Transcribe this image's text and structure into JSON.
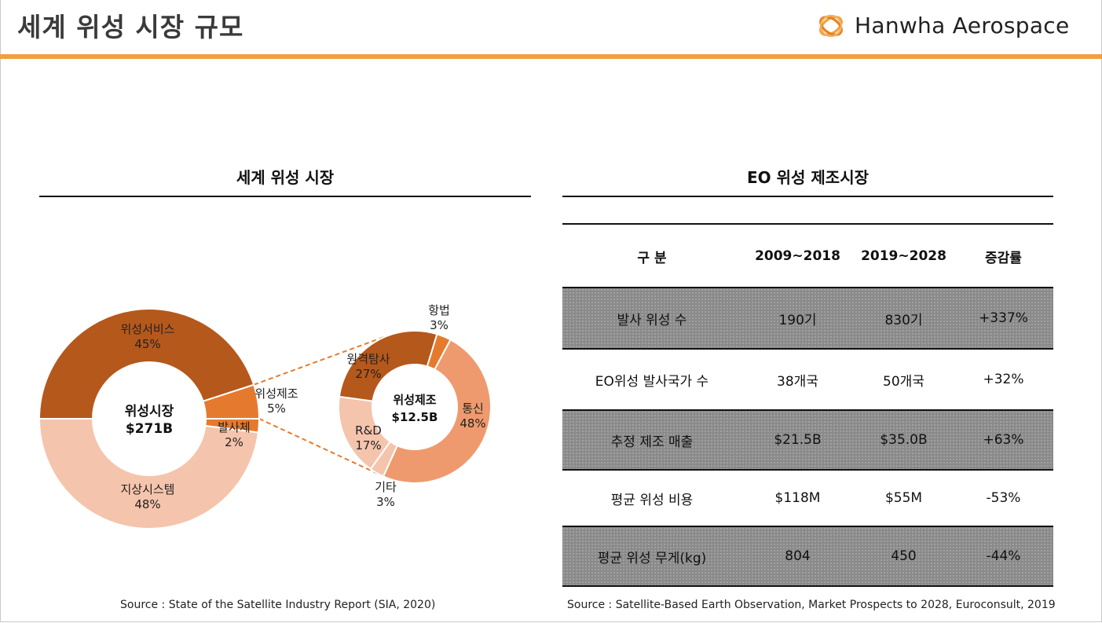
{
  "header": {
    "title": "세계 위성 시장 규모",
    "logo_text": "Hanwha Aerospace"
  },
  "colors": {
    "accent": "#f0a040",
    "dark_brown": "#b5581c",
    "orange": "#e57a2e",
    "salmon": "#ef9a6e",
    "light_pink": "#f5c4ac",
    "table_shade": "#8a8a8a"
  },
  "left_section": {
    "title": "세계 위성 시장",
    "source": "Source : State of the Satellite Industry Report (SIA, 2020)"
  },
  "right_section": {
    "title": "EO 위성 제조시장",
    "source": "Source : Satellite-Based Earth Observation, Market Prospects to 2028, Euroconsult, 2019"
  },
  "chart_data": [
    {
      "type": "pie",
      "center_label": [
        "위성시장",
        "$271B"
      ],
      "labels": [
        "위성서비스",
        "위성제조",
        "발사체",
        "지상시스템"
      ],
      "values": [
        45,
        5,
        2,
        48
      ],
      "value_labels": [
        "45%",
        "5%",
        "2%",
        "48%"
      ],
      "colors": [
        "#b5581c",
        "#e57a2e",
        "#e57a2e",
        "#f5c4ac"
      ]
    },
    {
      "type": "pie",
      "center_label": [
        "위성제조",
        "$12.5B"
      ],
      "labels": [
        "항법",
        "통신",
        "기타",
        "R&D",
        "원격탐사"
      ],
      "values": [
        3,
        48,
        3,
        17,
        27
      ],
      "value_labels": [
        "3%",
        "48%",
        "3%",
        "17%",
        "27%"
      ],
      "colors": [
        "#e57a2e",
        "#ef9a6e",
        "#f5c4ac",
        "#f5c4ac",
        "#b5581c"
      ]
    },
    {
      "type": "table",
      "headers": [
        "구 분",
        "2009~2018",
        "2019~2028",
        "증감률"
      ],
      "rows": [
        [
          "발사 위성 수",
          "190기",
          "830기",
          "+337%"
        ],
        [
          "EO위성 발사국가 수",
          "38개국",
          "50개국",
          "+32%"
        ],
        [
          "추정 제조 매출",
          "$21.5B",
          "$35.0B",
          "+63%"
        ],
        [
          "평균 위성 비용",
          "$118M",
          "$55M",
          "-53%"
        ],
        [
          "평균 위성 무게(kg)",
          "804",
          "450",
          "-44%"
        ]
      ],
      "shaded_rows": [
        0,
        2,
        4
      ]
    }
  ]
}
